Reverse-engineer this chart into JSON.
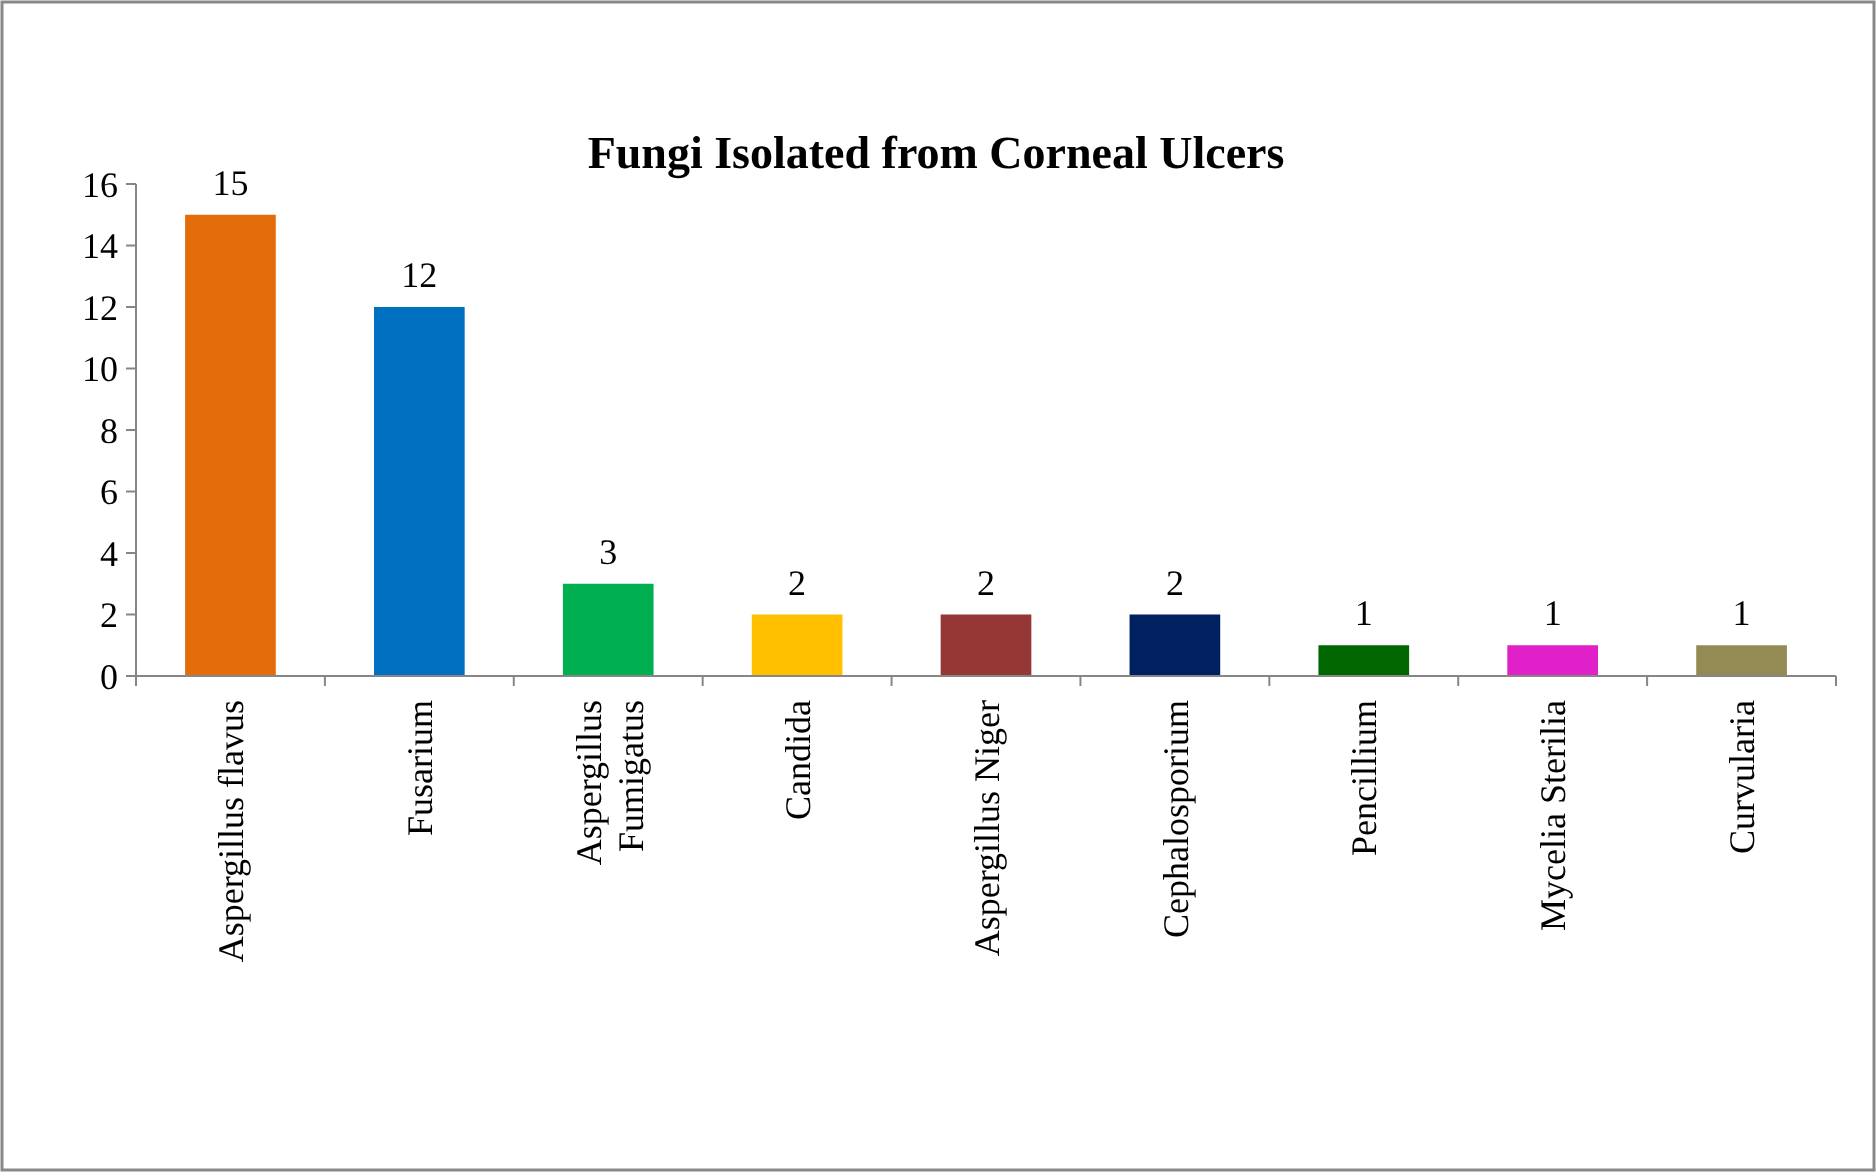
{
  "chart_data": {
    "type": "bar",
    "title": "Fungi Isolated from Corneal Ulcers",
    "categories": [
      "Aspergillus flavus",
      "Fusarium",
      "Aspergillus Fumigatus",
      "Candida",
      "Aspergillus Niger",
      "Cephalosporium",
      "Pencillium",
      "Mycelia Sterilia",
      "Curvularia"
    ],
    "values": [
      15,
      12,
      3,
      2,
      2,
      2,
      1,
      1,
      1
    ],
    "colors": [
      "#e46c0a",
      "#0070c0",
      "#00b050",
      "#ffc000",
      "#953735",
      "#002060",
      "#006600",
      "#e020c8",
      "#948a54"
    ],
    "ylim": [
      0,
      16
    ],
    "yticks": [
      0,
      2,
      4,
      6,
      8,
      10,
      12,
      14,
      16
    ],
    "grid": false,
    "data_labels": true
  }
}
